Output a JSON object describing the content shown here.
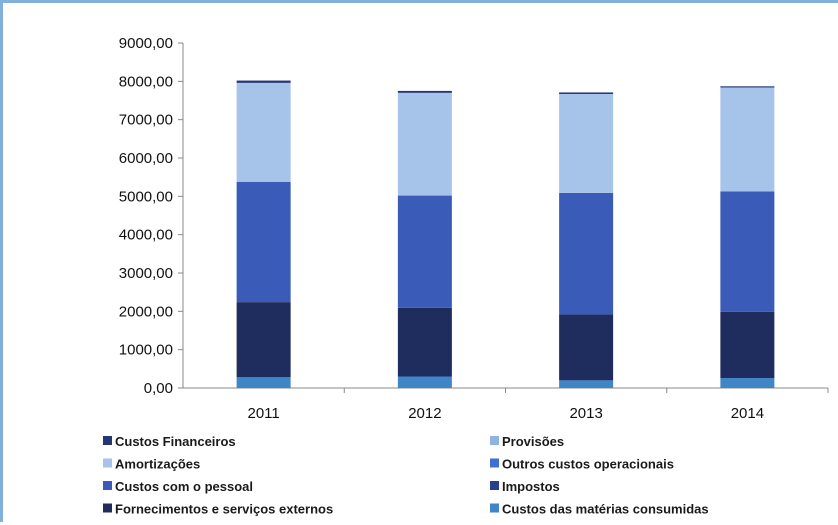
{
  "chart_data": {
    "type": "bar",
    "stacked": true,
    "categories": [
      "2011",
      "2012",
      "2013",
      "2014"
    ],
    "ylim": [
      0,
      9000
    ],
    "yticks": [
      "0,00",
      "1000,00",
      "2000,00",
      "3000,00",
      "4000,00",
      "5000,00",
      "6000,00",
      "7000,00",
      "8000,00",
      "9000,00"
    ],
    "ytick_values": [
      0,
      1000,
      2000,
      3000,
      4000,
      5000,
      6000,
      7000,
      8000,
      9000
    ],
    "grid": false,
    "legend_position": "bottom",
    "series": [
      {
        "name": "Custos das matérias consumidas",
        "color": "#3f86c8",
        "values": [
          280,
          300,
          200,
          260
        ]
      },
      {
        "name": "Fornecimentos e serviços externos",
        "color": "#1f2c5e",
        "values": [
          1960,
          1790,
          1720,
          1730
        ]
      },
      {
        "name": "Impostos",
        "color": "#283f8c",
        "values": [
          0,
          0,
          0,
          0
        ]
      },
      {
        "name": "Custos com o pessoal",
        "color": "#3a5cb8",
        "values": [
          3140,
          2930,
          3170,
          3140
        ]
      },
      {
        "name": "Outros custos operacionais",
        "color": "#3f6fd0",
        "values": [
          0,
          0,
          0,
          0
        ]
      },
      {
        "name": "Amortizações",
        "color": "#a6c4ea",
        "values": [
          2580,
          2680,
          2580,
          2710
        ]
      },
      {
        "name": "Provisões",
        "color": "#8fb4e4",
        "values": [
          0,
          0,
          0,
          0
        ]
      },
      {
        "name": "Custos Financeiros",
        "color": "#24357a",
        "values": [
          60,
          50,
          40,
          30
        ]
      }
    ],
    "legend_order": [
      "Custos Financeiros",
      "Provisões",
      "Amortizações",
      "Outros custos operacionais",
      "Custos com o pessoal",
      "Impostos",
      "Fornecimentos e serviços externos",
      "Custos das matérias consumidas"
    ]
  }
}
